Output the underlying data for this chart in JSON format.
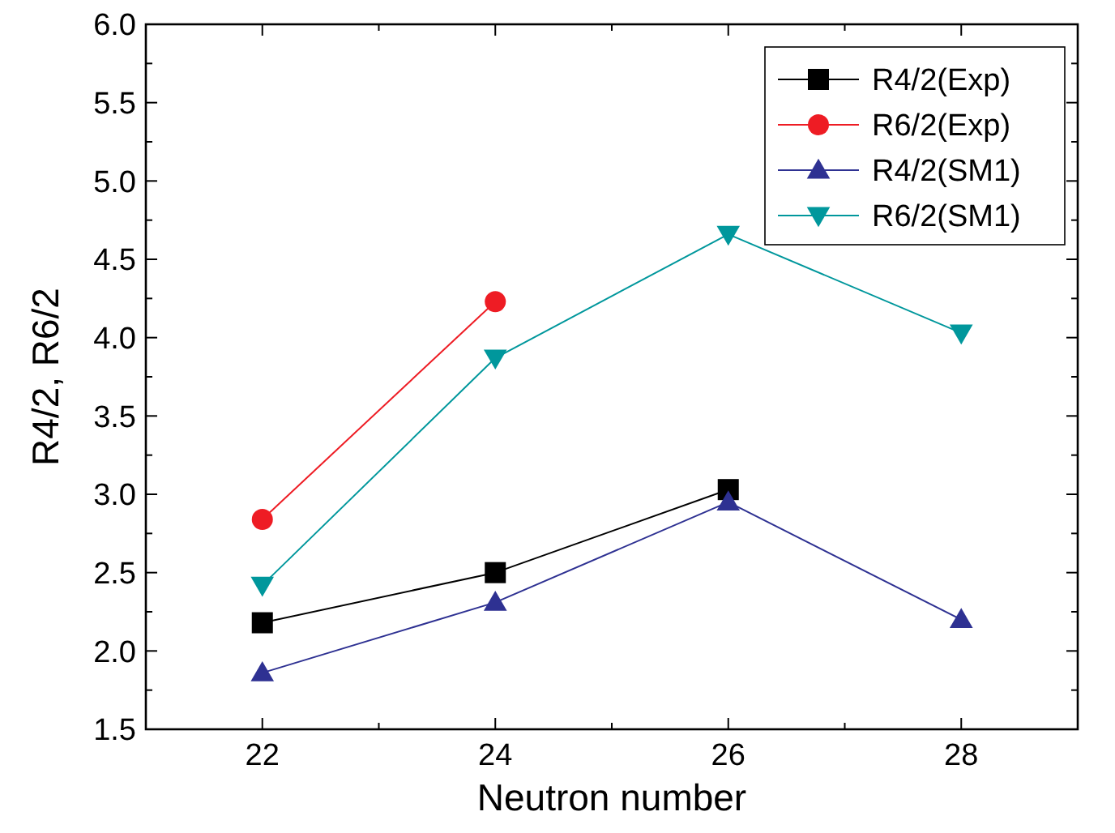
{
  "chart_data": {
    "type": "line",
    "xlabel": "Neutron number",
    "ylabel": "R4/2, R6/2",
    "x": [
      22,
      24,
      26,
      28
    ],
    "xlim": [
      21,
      29
    ],
    "xticks": [
      22,
      24,
      26,
      28
    ],
    "ylim": [
      1.5,
      6.0
    ],
    "yticks": [
      {
        "value": 1.5,
        "label": "1.5"
      },
      {
        "value": 2,
        "label": "2.0"
      },
      {
        "value": 2.5,
        "label": "2.5"
      },
      {
        "value": 3,
        "label": "3.0"
      },
      {
        "value": 3.5,
        "label": "3.5"
      },
      {
        "value": 4,
        "label": "4.0"
      },
      {
        "value": 4.5,
        "label": "4.5"
      },
      {
        "value": 5,
        "label": "5.0"
      },
      {
        "value": 5.5,
        "label": "5.5"
      },
      {
        "value": 6,
        "label": "6.0"
      }
    ],
    "grid": false,
    "legend": "top right",
    "series": [
      {
        "name": "R4/2(Exp)",
        "color": "#000000",
        "marker": "square",
        "values": [
          2.18,
          2.5,
          3.03,
          null
        ]
      },
      {
        "name": "R6/2(Exp)",
        "color": "#ee1c24",
        "marker": "circle",
        "values": [
          2.84,
          4.23,
          null,
          null
        ]
      },
      {
        "name": "R4/2(SM1)",
        "color": "#2e3192",
        "marker": "triangle",
        "values": [
          1.86,
          2.31,
          2.95,
          2.2
        ]
      },
      {
        "name": "R6/2(SM1)",
        "color": "#00979c",
        "marker": "triangle-down",
        "values": [
          2.42,
          3.87,
          4.66,
          4.03
        ]
      }
    ]
  }
}
